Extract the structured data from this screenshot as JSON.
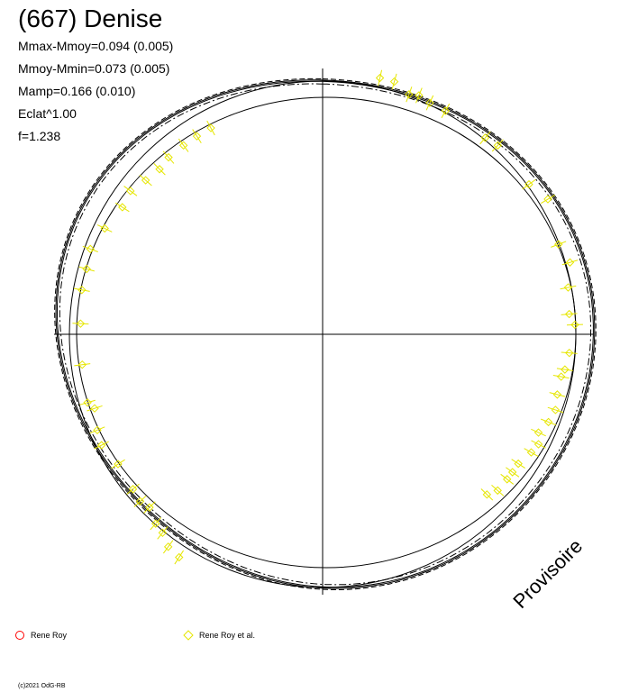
{
  "title": "(667) Denise",
  "stats": [
    "Mmax-Mmoy=0.094 (0.005)",
    "Mmoy-Mmin=0.073 (0.005)",
    "Mamp=0.166 (0.010)",
    "Eclat^1.00",
    "f=1.238"
  ],
  "stamp": "Provisoire",
  "copyright": "(c)2021 OdG-RB",
  "chart_data": {
    "type": "scatter",
    "title": "(667) Denise",
    "xlabel": "",
    "ylabel": "",
    "grid": false,
    "legend": "bottom-left",
    "series": [
      {
        "name": "Rene Roy",
        "color": "#ff0000",
        "marker": "open-circle-with-error-bar",
        "points": [
          {
            "phase": 0.035,
            "r": 1.03
          },
          {
            "phase": 0.044,
            "r": 1.03
          },
          {
            "phase": 0.055,
            "r": 1.0
          },
          {
            "phase": 0.061,
            "r": 1.01
          },
          {
            "phase": 0.069,
            "r": 1.0
          },
          {
            "phase": 0.08,
            "r": 1.0
          },
          {
            "phase": 0.11,
            "r": 1.0
          },
          {
            "phase": 0.119,
            "r": 1.01
          },
          {
            "phase": 0.15,
            "r": 1.0
          },
          {
            "phase": 0.164,
            "r": 1.03
          },
          {
            "phase": 0.192,
            "r": 0.99
          },
          {
            "phase": 0.205,
            "r": 1.01
          },
          {
            "phase": 0.22,
            "r": 0.98
          },
          {
            "phase": 0.237,
            "r": 0.97
          },
          {
            "phase": 0.244,
            "r": 0.99
          },
          {
            "phase": 0.262,
            "r": 0.97
          },
          {
            "phase": 0.273,
            "r": 0.96
          },
          {
            "phase": 0.278,
            "r": 0.95
          },
          {
            "phase": 0.29,
            "r": 0.95
          },
          {
            "phase": 0.3,
            "r": 0.96
          },
          {
            "phase": 0.309,
            "r": 0.95
          },
          {
            "phase": 0.318,
            "r": 0.93
          },
          {
            "phase": 0.325,
            "r": 0.95
          },
          {
            "phase": 0.332,
            "r": 0.94
          },
          {
            "phase": 0.343,
            "r": 0.92
          },
          {
            "phase": 0.35,
            "r": 0.92
          },
          {
            "phase": 0.356,
            "r": 0.92
          },
          {
            "phase": 0.366,
            "r": 0.92
          },
          {
            "phase": 0.373,
            "r": 0.9
          }
        ]
      },
      {
        "name": "Rene Roy et al.",
        "color": "#ffff00",
        "marker": "open-diamond-with-error-bar",
        "points": [
          {
            "phase": 0.591,
            "r": 1.04
          },
          {
            "phase": 0.6,
            "r": 1.03
          },
          {
            "phase": 0.608,
            "r": 1.0
          },
          {
            "phase": 0.615,
            "r": 0.99
          },
          {
            "phase": 0.625,
            "r": 0.96
          },
          {
            "phase": 0.632,
            "r": 0.97
          },
          {
            "phase": 0.641,
            "r": 0.96
          },
          {
            "phase": 0.66,
            "r": 0.95
          },
          {
            "phase": 0.676,
            "r": 0.97
          },
          {
            "phase": 0.686,
            "r": 0.96
          },
          {
            "phase": 0.7,
            "r": 0.94
          },
          {
            "phase": 0.705,
            "r": 0.96
          },
          {
            "phase": 0.73,
            "r": 0.95
          },
          {
            "phase": 0.757,
            "r": 0.95
          },
          {
            "phase": 0.779,
            "r": 0.96
          },
          {
            "phase": 0.793,
            "r": 0.96
          },
          {
            "phase": 0.806,
            "r": 0.97
          },
          {
            "phase": 0.822,
            "r": 0.95
          },
          {
            "phase": 0.84,
            "r": 0.93
          },
          {
            "phase": 0.852,
            "r": 0.94
          },
          {
            "phase": 0.864,
            "r": 0.92
          },
          {
            "phase": 0.876,
            "r": 0.91
          },
          {
            "phase": 0.886,
            "r": 0.92
          },
          {
            "phase": 0.899,
            "r": 0.92
          },
          {
            "phase": 0.91,
            "r": 0.92
          },
          {
            "phase": 0.921,
            "r": 0.92
          }
        ]
      }
    ],
    "reference_curves": [
      {
        "name": "",
        "style": "solid",
        "offset": 0.0
      },
      {
        "name": "",
        "style": "dashed",
        "offset": 0.01
      },
      {
        "name": "",
        "style": "dashdot",
        "offset": -0.01
      },
      {
        "name": "",
        "style": "solid",
        "offset": 0.005
      }
    ]
  }
}
